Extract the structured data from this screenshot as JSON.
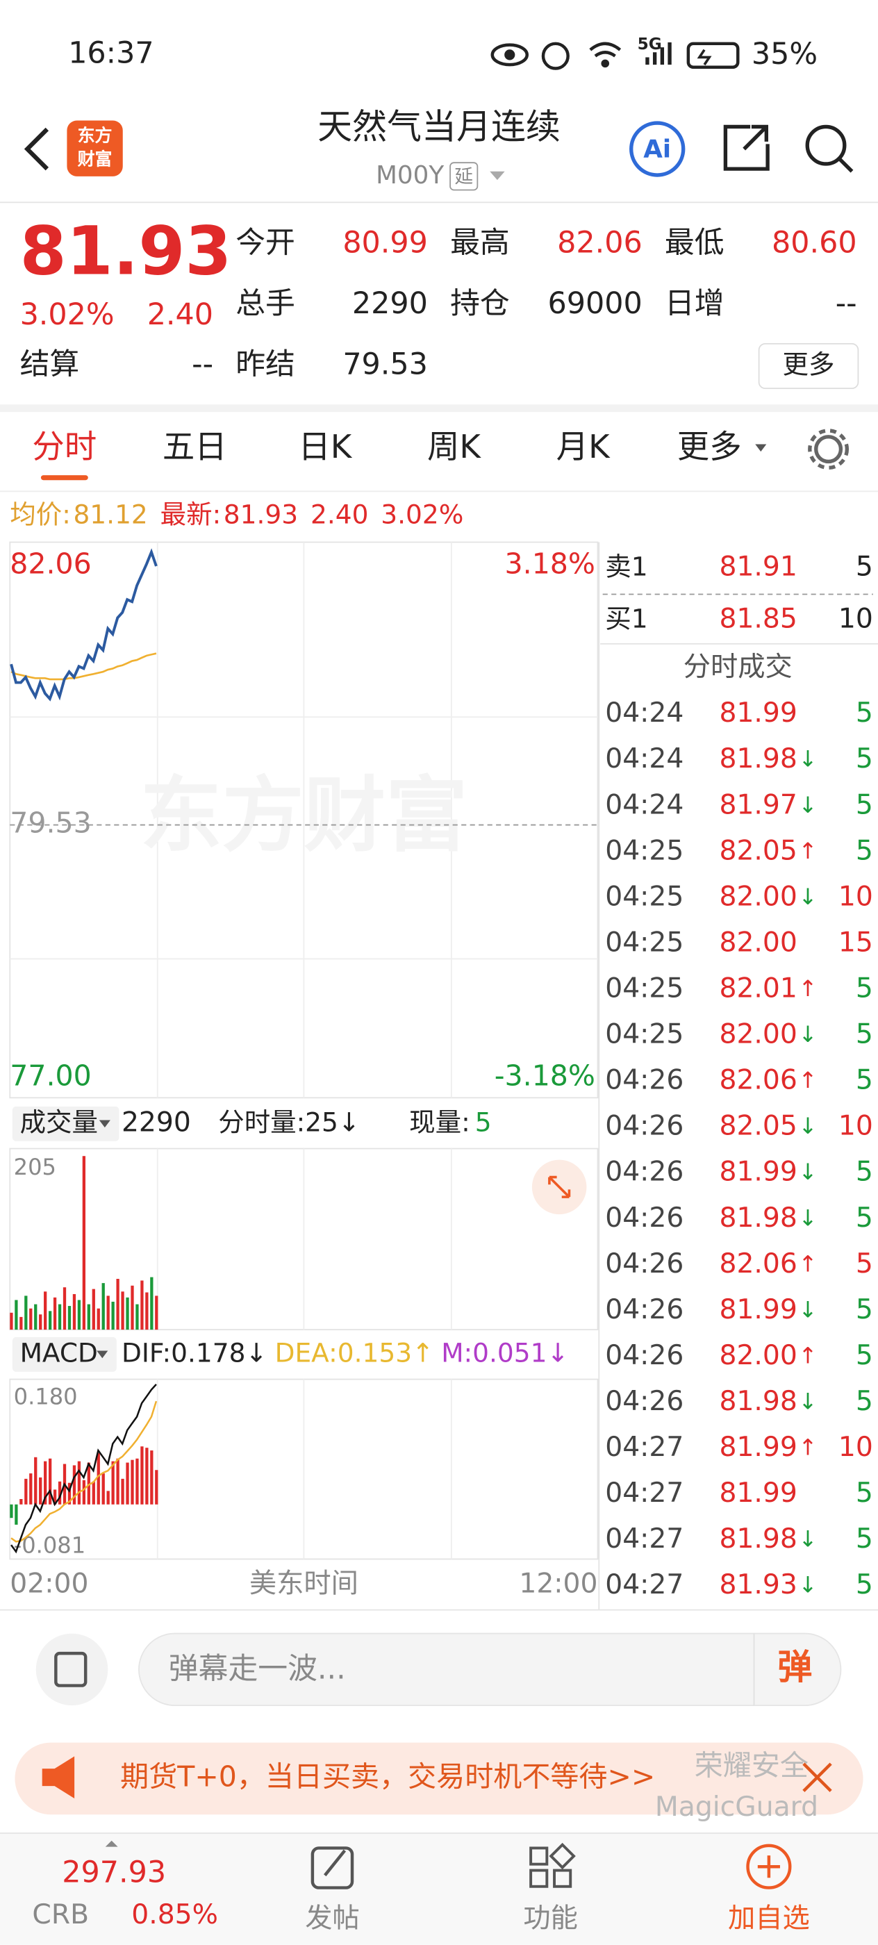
{
  "status_bar": {
    "time": "16:37",
    "network": "5G",
    "battery": "35%"
  },
  "header": {
    "logo": [
      "东方",
      "财富"
    ],
    "title": "天然气当月连续",
    "code": "M00Y",
    "badge": "延",
    "ai": "Ai"
  },
  "quote": {
    "price": "81.93",
    "change_pct": "3.02%",
    "change": "2.40",
    "rows": [
      [
        {
          "label": "今开",
          "value": "80.99",
          "color": "#e02a2a"
        },
        {
          "label": "最高",
          "value": "82.06",
          "color": "#e02a2a"
        },
        {
          "label": "最低",
          "value": "80.60",
          "color": "#e02a2a"
        }
      ],
      [
        {
          "label": "总手",
          "value": "2290"
        },
        {
          "label": "持仓",
          "value": "69000"
        },
        {
          "label": "日增",
          "value": "--"
        }
      ],
      [
        {
          "label": "结算",
          "value": "--"
        },
        {
          "label": "昨结",
          "value": "79.53"
        }
      ]
    ],
    "more": "更多"
  },
  "tabs": [
    "分时",
    "五日",
    "日K",
    "周K",
    "月K",
    "更多"
  ],
  "info_line": {
    "avg_label": "均价:",
    "avg": "81.12",
    "latest_label": "最新:",
    "latest": "81.93",
    "change": "2.40",
    "change_pct": "3.02%"
  },
  "price_chart": {
    "type": "line",
    "watermark": "东方财富",
    "ylim": [
      77,
      82.06
    ],
    "yticks": [
      82.06,
      79.53,
      {
        "value": 77,
        "label": "77.00"
      }
    ],
    "pct_labels": [
      "3.18%",
      "-3.18%"
    ],
    "price": [
      81.02,
      80.85,
      80.85,
      80.9,
      80.8,
      80.72,
      80.85,
      80.75,
      80.7,
      80.82,
      80.72,
      80.88,
      80.95,
      80.9,
      81.0,
      80.98,
      81.1,
      81.05,
      81.2,
      81.15,
      81.35,
      81.3,
      81.45,
      81.5,
      81.62,
      81.6,
      81.75,
      81.85,
      81.95,
      82.06,
      81.93
    ],
    "avg": [
      80.95,
      80.93,
      80.92,
      80.91,
      80.9,
      80.89,
      80.89,
      80.89,
      80.88,
      80.88,
      80.88,
      80.88,
      80.89,
      80.89,
      80.9,
      80.91,
      80.92,
      80.93,
      80.94,
      80.95,
      80.97,
      80.98,
      81.0,
      81.01,
      81.03,
      81.05,
      81.06,
      81.08,
      81.1,
      81.11,
      81.12
    ],
    "price_color": "#2c5aa0",
    "avg_color": "#f0b030"
  },
  "volume_chart": {
    "type": "bar",
    "label": "成交量",
    "total": "2290",
    "tick_label": "分时量:",
    "tick_volume": "25↓",
    "now_label": "现量:",
    "now": "5",
    "ylim": [
      0,
      205
    ],
    "yticks": [
      205
    ],
    "values": [
      20,
      35,
      15,
      40,
      25,
      30,
      18,
      45,
      22,
      38,
      30,
      50,
      28,
      42,
      35,
      205,
      30,
      48,
      25,
      55,
      40,
      33,
      60,
      45,
      38,
      52,
      30,
      58,
      44,
      62,
      40
    ],
    "colors": [
      "#e02a2a",
      "#1a9a3a",
      "#e02a2a",
      "#1a9a3a",
      "#e02a2a",
      "#1a9a3a",
      "#e02a2a",
      "#e02a2a",
      "#1a9a3a",
      "#e02a2a",
      "#1a9a3a",
      "#e02a2a",
      "#1a9a3a",
      "#e02a2a",
      "#1a9a3a",
      "#e02a2a",
      "#1a9a3a",
      "#e02a2a",
      "#e02a2a",
      "#1a9a3a",
      "#e02a2a",
      "#1a9a3a",
      "#e02a2a",
      "#e02a2a",
      "#1a9a3a",
      "#e02a2a",
      "#1a9a3a",
      "#e02a2a",
      "#e02a2a",
      "#1a9a3a",
      "#e02a2a"
    ]
  },
  "macd_chart": {
    "type": "macd",
    "label": "MACD",
    "dif": "DIF:0.178↓",
    "dea": "DEA:0.153↑",
    "m": "M:0.051↓",
    "ylim": [
      -0.081,
      0.18
    ],
    "yticks": [
      {
        "value": 0.18,
        "label": "0.180"
      },
      -0.081
    ],
    "dif_values": [
      -0.06,
      -0.07,
      -0.05,
      -0.03,
      -0.02,
      0.0,
      -0.01,
      0.01,
      0.02,
      0.0,
      0.01,
      0.03,
      0.02,
      0.04,
      0.05,
      0.04,
      0.06,
      0.05,
      0.08,
      0.07,
      0.06,
      0.09,
      0.1,
      0.09,
      0.11,
      0.12,
      0.13,
      0.15,
      0.16,
      0.17,
      0.178
    ],
    "dea_values": [
      -0.05,
      -0.055,
      -0.054,
      -0.049,
      -0.043,
      -0.035,
      -0.03,
      -0.022,
      -0.014,
      -0.011,
      -0.007,
      0.0,
      0.004,
      0.011,
      0.018,
      0.022,
      0.029,
      0.033,
      0.042,
      0.047,
      0.05,
      0.058,
      0.066,
      0.071,
      0.079,
      0.087,
      0.096,
      0.107,
      0.118,
      0.13,
      0.153
    ],
    "m_values": [
      -0.02,
      -0.03,
      0.008,
      0.038,
      0.046,
      0.07,
      0.04,
      0.064,
      0.068,
      0.022,
      0.034,
      0.06,
      0.032,
      0.058,
      0.064,
      0.036,
      0.062,
      0.034,
      0.076,
      0.046,
      0.02,
      0.064,
      0.068,
      0.038,
      0.062,
      0.066,
      0.068,
      0.086,
      0.084,
      0.08,
      0.051
    ],
    "dif_color": "#111111",
    "dea_color": "#f0b030"
  },
  "x_axis": [
    "02:00",
    "美东时间",
    "12:00"
  ],
  "order_book": [
    {
      "label": "卖1",
      "price": "81.91",
      "volume": "5"
    },
    {
      "label": "买1",
      "price": "81.85",
      "volume": "10"
    }
  ],
  "trades_title": "分时成交",
  "trades": [
    {
      "time": "04:24",
      "price": "81.99",
      "volume": "5",
      "color": "#1a9a3a"
    },
    {
      "time": "04:24",
      "price": "81.98",
      "arrow": "↓",
      "volume": "5",
      "color": "#1a9a3a"
    },
    {
      "time": "04:24",
      "price": "81.97",
      "arrow": "↓",
      "volume": "5",
      "color": "#1a9a3a"
    },
    {
      "time": "04:25",
      "price": "82.05",
      "arrow": "↑",
      "volume": "5",
      "color": "#1a9a3a"
    },
    {
      "time": "04:25",
      "price": "82.00",
      "arrow": "↓",
      "volume": "10",
      "color": "#e02a2a"
    },
    {
      "time": "04:25",
      "price": "82.00",
      "volume": "15",
      "color": "#e02a2a"
    },
    {
      "time": "04:25",
      "price": "82.01",
      "arrow": "↑",
      "volume": "5",
      "color": "#1a9a3a"
    },
    {
      "time": "04:25",
      "price": "82.00",
      "arrow": "↓",
      "volume": "5",
      "color": "#1a9a3a"
    },
    {
      "time": "04:26",
      "price": "82.06",
      "arrow": "↑",
      "volume": "5",
      "color": "#1a9a3a"
    },
    {
      "time": "04:26",
      "price": "82.05",
      "arrow": "↓",
      "volume": "10",
      "color": "#e02a2a"
    },
    {
      "time": "04:26",
      "price": "81.99",
      "arrow": "↓",
      "volume": "5",
      "color": "#1a9a3a"
    },
    {
      "time": "04:26",
      "price": "81.98",
      "arrow": "↓",
      "volume": "5",
      "color": "#1a9a3a"
    },
    {
      "time": "04:26",
      "price": "82.06",
      "arrow": "↑",
      "volume": "5",
      "color": "#e02a2a"
    },
    {
      "time": "04:26",
      "price": "81.99",
      "arrow": "↓",
      "volume": "5",
      "color": "#1a9a3a"
    },
    {
      "time": "04:26",
      "price": "82.00",
      "arrow": "↑",
      "volume": "5",
      "color": "#1a9a3a"
    },
    {
      "time": "04:26",
      "price": "81.98",
      "arrow": "↓",
      "volume": "5",
      "color": "#1a9a3a"
    },
    {
      "time": "04:27",
      "price": "81.99",
      "arrow": "↑",
      "volume": "10",
      "color": "#e02a2a"
    },
    {
      "time": "04:27",
      "price": "81.99",
      "volume": "5",
      "color": "#1a9a3a"
    },
    {
      "time": "04:27",
      "price": "81.98",
      "arrow": "↓",
      "volume": "5",
      "color": "#1a9a3a"
    },
    {
      "time": "04:27",
      "price": "81.93",
      "arrow": "↓",
      "volume": "5",
      "color": "#1a9a3a"
    }
  ],
  "comment": {
    "placeholder": "弹幕走一波...",
    "button": "弹"
  },
  "banner": "期货T+0，当日买卖，交易时机不等待>>",
  "overlay": [
    "荣耀安全",
    "MagicGuard"
  ],
  "bottom_nav": {
    "index_value": "297.93",
    "index_name": "CRB",
    "index_pct": "0.85%",
    "items": [
      "发帖",
      "功能",
      "加自选"
    ]
  }
}
